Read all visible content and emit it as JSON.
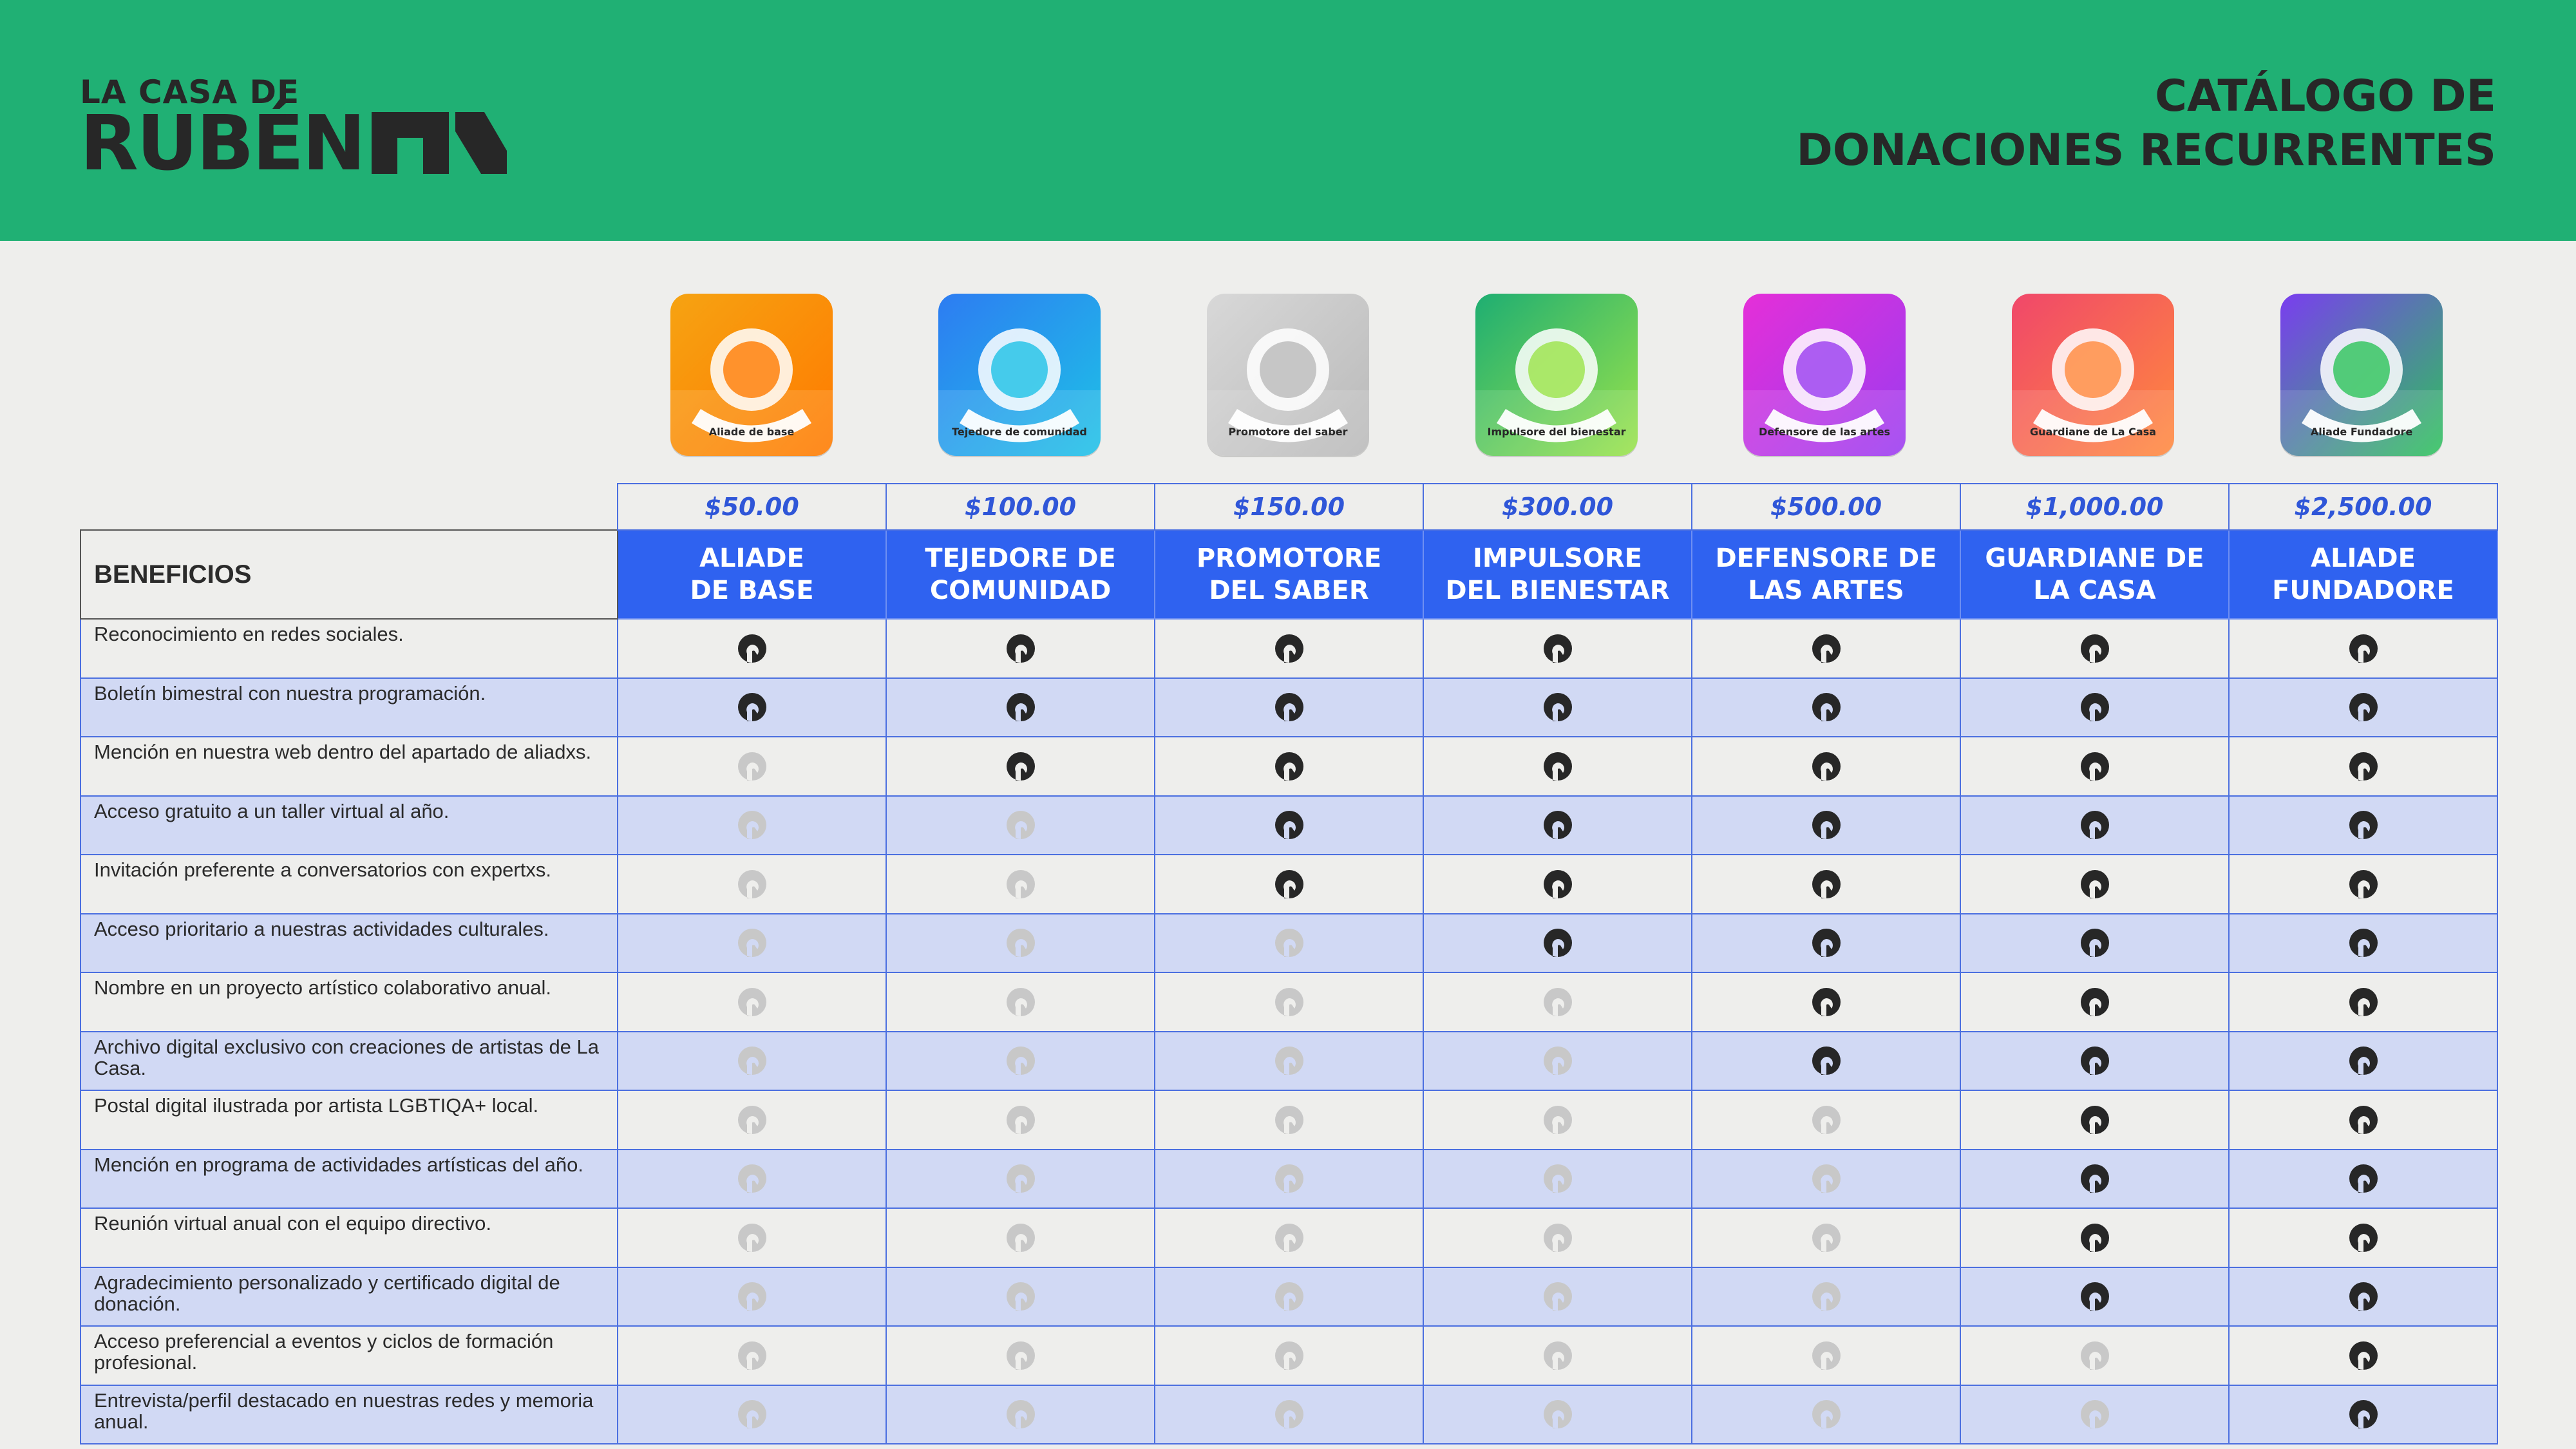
{
  "brand": {
    "logo_top": "LA CASA DE",
    "logo_bottom": "RUBÉN",
    "header_color": "#20b074"
  },
  "title": {
    "line1": "CATÁLOGO DE",
    "line2": "DONACIONES RECURRENTES"
  },
  "colors": {
    "tier_header_bg": "#2f62f0",
    "price_text": "#2f56d8",
    "alt_row_bg": "#d1d9f4",
    "check_on": "#272727",
    "check_off": "#c8c8c8"
  },
  "benefits_header": "BENEFICIOS",
  "tiers": [
    {
      "price": "$50.00",
      "name_line1": "ALIADE",
      "name_line2": "DE BASE",
      "badge_label": "Aliade de base",
      "badge_colors": [
        "#f6a312",
        "#ff7a00"
      ],
      "badge_icon": "hands-plant-icon"
    },
    {
      "price": "$100.00",
      "name_line1": "TEJEDORE DE",
      "name_line2": "COMUNIDAD",
      "badge_label": "Tejedore de comunidad",
      "badge_colors": [
        "#2d7cf2",
        "#1ec2e6"
      ],
      "badge_icon": "yarn-ball-icon"
    },
    {
      "price": "$150.00",
      "name_line1": "PROMOTORE",
      "name_line2": "DEL SABER",
      "badge_label": "Promotore del saber",
      "badge_colors": [
        "#d8d8d8",
        "#b9b9b9"
      ],
      "badge_icon": "brain-icon"
    },
    {
      "price": "$300.00",
      "name_line1": "IMPULSORE",
      "name_line2": "DEL BIENESTAR",
      "badge_label": "Impulsore del bienestar",
      "badge_colors": [
        "#1eae72",
        "#9be34a"
      ],
      "badge_icon": "hug-icon"
    },
    {
      "price": "$500.00",
      "name_line1": "DEFENSORE DE",
      "name_line2": "LAS ARTES",
      "badge_label": "Defensore de las artes",
      "badge_colors": [
        "#e52fd8",
        "#9a3cf0"
      ],
      "badge_icon": "palette-flowers-icon"
    },
    {
      "price": "$1,000.00",
      "name_line1": "GUARDIANE DE",
      "name_line2": "LA CASA",
      "badge_label": "Guardiane de La Casa",
      "badge_colors": [
        "#f0476a",
        "#ff8a3d"
      ],
      "badge_icon": "knight-helmet-icon"
    },
    {
      "price": "$2,500.00",
      "name_line1": "ALIADE",
      "name_line2": "FUNDADORE",
      "badge_label": "Aliade Fundadore",
      "badge_colors": [
        "#7a3df0",
        "#2dc35a"
      ],
      "badge_icon": "star-hands-icon"
    }
  ],
  "benefits": [
    {
      "label": "Reconocimiento en redes sociales.",
      "included": [
        true,
        true,
        true,
        true,
        true,
        true,
        true
      ]
    },
    {
      "label": "Boletín bimestral con nuestra programación.",
      "included": [
        true,
        true,
        true,
        true,
        true,
        true,
        true
      ]
    },
    {
      "label": "Mención en nuestra web dentro del apartado de aliadxs.",
      "included": [
        false,
        true,
        true,
        true,
        true,
        true,
        true
      ]
    },
    {
      "label": "Acceso gratuito a un taller virtual al año.",
      "included": [
        false,
        false,
        true,
        true,
        true,
        true,
        true
      ]
    },
    {
      "label": "Invitación preferente a conversatorios con expertxs.",
      "included": [
        false,
        false,
        true,
        true,
        true,
        true,
        true
      ]
    },
    {
      "label": "Acceso prioritario a nuestras actividades culturales.",
      "included": [
        false,
        false,
        false,
        true,
        true,
        true,
        true
      ]
    },
    {
      "label": "Nombre en un proyecto artístico colaborativo anual.",
      "included": [
        false,
        false,
        false,
        false,
        true,
        true,
        true
      ]
    },
    {
      "label": "Archivo digital exclusivo con creaciones de artistas de La Casa.",
      "included": [
        false,
        false,
        false,
        false,
        true,
        true,
        true
      ]
    },
    {
      "label": "Postal digital ilustrada por artista LGBTIQA+ local.",
      "included": [
        false,
        false,
        false,
        false,
        false,
        true,
        true
      ]
    },
    {
      "label": "Mención en programa de actividades artísticas del año.",
      "included": [
        false,
        false,
        false,
        false,
        false,
        true,
        true
      ]
    },
    {
      "label": "Reunión virtual anual con el equipo directivo.",
      "included": [
        false,
        false,
        false,
        false,
        false,
        true,
        true
      ]
    },
    {
      "label": "Agradecimiento personalizado y certificado digital de donación.",
      "included": [
        false,
        false,
        false,
        false,
        false,
        true,
        true
      ]
    },
    {
      "label": "Acceso preferencial a eventos y ciclos de formación profesional.",
      "included": [
        false,
        false,
        false,
        false,
        false,
        false,
        true
      ]
    },
    {
      "label": "Entrevista/perfil destacado en nuestras redes y memoria anual.",
      "included": [
        false,
        false,
        false,
        false,
        false,
        false,
        true
      ]
    }
  ]
}
